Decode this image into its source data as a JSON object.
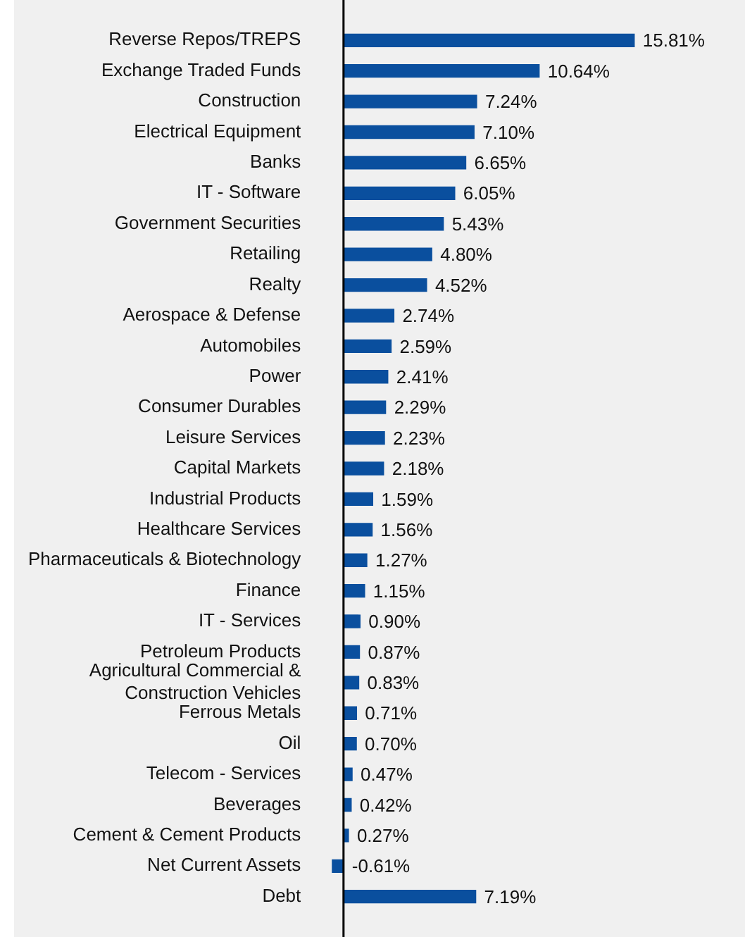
{
  "chart_data": {
    "type": "bar",
    "orientation": "horizontal",
    "categories": [
      "Reverse Repos/TREPS",
      "Exchange Traded Funds",
      "Construction",
      "Electrical Equipment",
      "Banks",
      "IT - Software",
      "Government Securities",
      "Retailing",
      "Realty",
      "Aerospace & Defense",
      "Automobiles",
      "Power",
      "Consumer Durables",
      "Leisure Services",
      "Capital Markets",
      "Industrial Products",
      "Healthcare Services",
      "Pharmaceuticals & Biotechnology",
      "Finance",
      "IT - Services",
      "Petroleum Products",
      "Agricultural Commercial &\nConstruction Vehicles",
      "Ferrous Metals",
      "Oil",
      "Telecom - Services",
      "Beverages",
      "Cement & Cement Products",
      "Net Current Assets",
      "Debt"
    ],
    "values": [
      15.81,
      10.64,
      7.24,
      7.1,
      6.65,
      6.05,
      5.43,
      4.8,
      4.52,
      2.74,
      2.59,
      2.41,
      2.29,
      2.23,
      2.18,
      1.59,
      1.56,
      1.27,
      1.15,
      0.9,
      0.87,
      0.83,
      0.71,
      0.7,
      0.47,
      0.42,
      0.27,
      -0.61,
      7.19
    ],
    "value_labels": [
      "15.81%",
      "10.64%",
      "7.24%",
      "7.10%",
      "6.65%",
      "6.05%",
      "5.43%",
      "4.80%",
      "4.52%",
      "2.74%",
      "2.59%",
      "2.41%",
      "2.29%",
      "2.23%",
      "2.18%",
      "1.59%",
      "1.56%",
      "1.27%",
      "1.15%",
      "0.90%",
      "0.87%",
      "0.83%",
      "0.71%",
      "0.70%",
      "0.47%",
      "0.42%",
      "0.27%",
      "-0.61%",
      "7.19%"
    ],
    "color": "#0a4f9e"
  }
}
